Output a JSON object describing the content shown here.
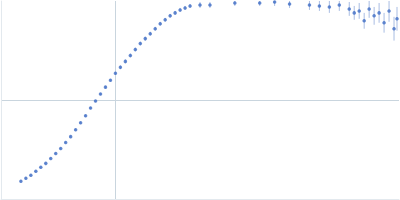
{
  "chart_data": {
    "type": "scatter",
    "color": "#3d6cc4",
    "marker": "circle",
    "grid": true,
    "tick_labels": false,
    "xlim": [
      0,
      400
    ],
    "xticks": [
      115
    ],
    "ylim": [
      0,
      200
    ],
    "yticks": [
      100
    ],
    "x": [
      20,
      25,
      30,
      35,
      40,
      45,
      50,
      55,
      60,
      65,
      70,
      75,
      80,
      85,
      90,
      95,
      100,
      105,
      110,
      115,
      120,
      125,
      130,
      135,
      140,
      145,
      150,
      155,
      160,
      165,
      170,
      175,
      180,
      185,
      190,
      200,
      210,
      235,
      260,
      275,
      290,
      310,
      320,
      330,
      340,
      350,
      355,
      360,
      365,
      370,
      375,
      380,
      385,
      390,
      395,
      398
    ],
    "values": [
      18,
      21,
      24,
      28,
      32,
      36,
      41,
      46,
      51,
      57,
      63,
      70,
      77,
      84,
      92,
      99,
      106,
      113,
      120,
      127,
      133,
      139,
      145,
      151,
      157,
      162,
      167,
      172,
      177,
      181,
      185,
      188,
      191,
      193,
      195,
      196,
      196,
      198,
      198,
      199,
      197,
      196,
      195,
      194,
      196,
      192,
      188,
      190,
      180,
      192,
      185,
      188,
      178,
      190,
      172,
      182
    ],
    "errors": [
      1,
      1,
      1,
      1,
      1,
      1,
      1,
      1,
      1,
      1,
      1,
      1,
      1,
      1,
      1,
      1,
      1,
      1,
      1,
      1,
      2,
      2,
      2,
      2,
      2,
      2,
      2,
      2,
      2,
      2,
      2,
      2,
      2,
      2,
      2,
      3,
      3,
      3,
      3,
      4,
      4,
      5,
      5,
      6,
      6,
      7,
      7,
      8,
      8,
      9,
      9,
      10,
      10,
      11,
      12,
      12
    ]
  }
}
